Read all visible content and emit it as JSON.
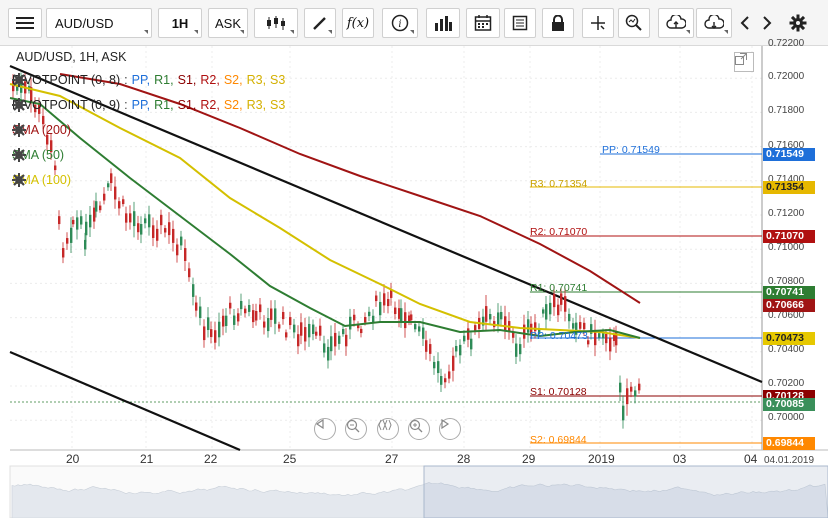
{
  "toolbar": {
    "symbol": "AUD/USD",
    "timeframe": "1H",
    "price_side": "ASK"
  },
  "chart": {
    "header": "AUD/USD, 1H, ASK",
    "indicators": [
      {
        "prefix": "PIVOTPOINT (0, 8)",
        "sep": ":",
        "pp": "PP,",
        "r1": "R1,",
        "s1": "S1,",
        "r2": "R2,",
        "s2": "S2,",
        "r3": "R3,",
        "s3": "S3"
      },
      {
        "prefix": "PIVOTPOINT (0, 9)",
        "sep": ":",
        "pp": "PP,",
        "r1": "R1,",
        "s1": "S1,",
        "r2": "R2,",
        "s2": "S2,",
        "r3": "R3,",
        "s3": "S3"
      },
      {
        "label": "SMA (200)",
        "color": "#a01414"
      },
      {
        "label": "SMA (50)",
        "color": "#2e7d32"
      },
      {
        "label": "SMA (100)",
        "color": "#d4c000"
      }
    ],
    "price_axis": [
      "0.72200",
      "0.72000",
      "0.71800",
      "0.71600",
      "0.71400",
      "0.71200",
      "0.71000",
      "0.70800",
      "0.70600",
      "0.70400",
      "0.70200",
      "0.70000"
    ],
    "date_axis": [
      "20",
      "21",
      "22",
      "25",
      "27",
      "28",
      "29",
      "2019",
      "03",
      "04"
    ],
    "date_corner": "04.01.2019",
    "pivot_labels": {
      "pp": "PP: 0.71549",
      "r3": "R3: 0.71354",
      "r2": "R2: 0.71070",
      "r1": "R1: 0.70741",
      "pp2": "PP: 0.70473",
      "s1": "S1: 0.70128",
      "s2": "S2: 0.69844"
    },
    "price_tags": {
      "pp": "0.71549",
      "r3": "0.71354",
      "r2": "0.71070",
      "r1": "0.70741",
      "sma200": "0.70666",
      "pp2": "0.70473",
      "s1": "0.70128",
      "last": "0.70085",
      "s2": "0.69844"
    },
    "colors": {
      "pp": "#1e6fd9",
      "r3": "#e6b800",
      "r2": "#b01010",
      "r1": "#2e7d32",
      "s1": "#8b0000",
      "s2": "#ff8800",
      "sma200": "#a01414",
      "sma50": "#2e7d32",
      "sma100": "#d4c000"
    }
  }
}
